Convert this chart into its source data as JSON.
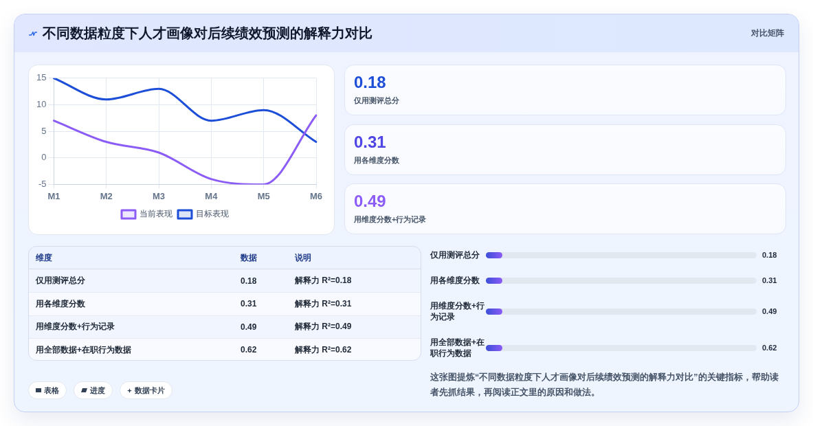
{
  "chart_data": [
    {
      "type": "other",
      "title": "不同数据粒度下人才画像对后续绩效预测的解释力对比",
      "subtitle": "对比矩阵"
    },
    {
      "type": "line",
      "categories": [
        "M1",
        "M2",
        "M3",
        "M4",
        "M5",
        "M6"
      ],
      "series": [
        {
          "name": "当前表现",
          "color": "#8b5cf6",
          "values": [
            7,
            3,
            1,
            -4,
            -5,
            8
          ]
        },
        {
          "name": "目标表现",
          "color": "#1d4ed8",
          "values": [
            15,
            11,
            13,
            7,
            9,
            3
          ]
        }
      ],
      "ylim": [
        -5,
        15
      ],
      "yticks": [
        -5,
        0,
        5,
        10,
        15
      ],
      "grid": true,
      "legend": "bottom"
    },
    {
      "type": "other",
      "categories": [
        "仅用测评总分",
        "用各维度分数",
        "用维度分数+行为记录"
      ],
      "values": [
        0.18,
        0.31,
        0.49
      ],
      "data_labels": true
    },
    {
      "type": "other",
      "xlabel": "维度",
      "categories": [
        "仅用测评总分",
        "用各维度分数",
        "用维度分数+行为记录",
        "用全部数据+在职行为数据"
      ],
      "series": [
        {
          "name": "数据",
          "values": [
            0.18,
            0.31,
            0.49,
            0.62
          ]
        }
      ],
      "data_labels": true,
      "y2label": "说明",
      "y2_categories": [
        "解释力 R²=0.18",
        "解释力 R²=0.31",
        "解释力 R²=0.49",
        "解释力 R²=0.62"
      ]
    },
    {
      "type": "other",
      "categories": [
        "仅用测评总分",
        "用各维度分数",
        "用维度分数+行为记录",
        "用全部数据+在职行为数据"
      ],
      "values": [
        0.18,
        0.31,
        0.49,
        0.62
      ],
      "data_labels": true
    },
    {
      "type": "other",
      "annotations": [
        "表格",
        "进度",
        "数据卡片",
        "这张图提炼“不同数据粒度下人才画像对后续绩效预测的解释力对比”的关键指标，帮助读者先抓结果，再阅读正文里的原因和做法。"
      ]
    }
  ]
}
